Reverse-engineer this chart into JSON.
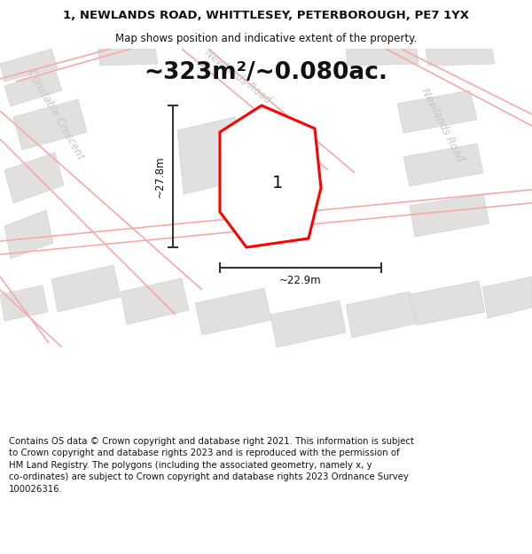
{
  "title": "1, NEWLANDS ROAD, WHITTLESEY, PETERBOROUGH, PE7 1YX",
  "subtitle": "Map shows position and indicative extent of the property.",
  "area_text": "~323m²/~0.080ac.",
  "dim_width": "~22.9m",
  "dim_height": "~27.8m",
  "plot_label": "1",
  "footer": "Contains OS data © Crown copyright and database right 2021. This information is subject\nto Crown copyright and database rights 2023 and is reproduced with the permission of\nHM Land Registry. The polygons (including the associated geometry, namely x, y\nco-ordinates) are subject to Crown copyright and database rights 2023 Ordnance Survey\n100026316.",
  "map_bg": "#f2efef",
  "plot_fill": "#ffffff",
  "plot_edge": "#ff0000",
  "road_label_color": "#c8c4c4",
  "building_fill": "#e2dfdf",
  "building_edge": "#d5d2d2",
  "road_line_color": "#f5aaaa",
  "dim_line_color": "#333333",
  "title_fontsize": 9.5,
  "subtitle_fontsize": 8.5,
  "area_fontsize": 19,
  "label_fontsize": 14,
  "road_label_fontsize": 8.5,
  "footer_fontsize": 7.3,
  "title_color": "#111111",
  "footer_color": "#111111"
}
